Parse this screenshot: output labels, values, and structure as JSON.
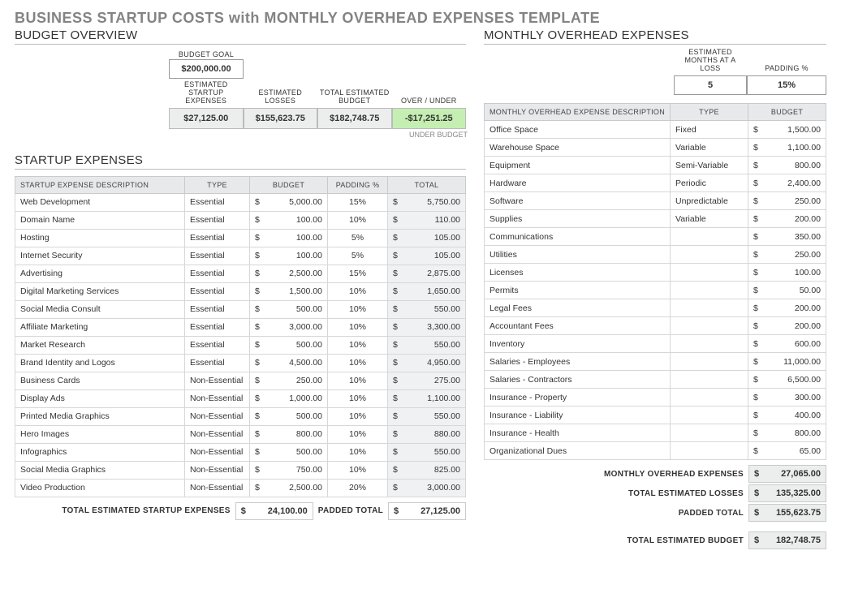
{
  "title": "BUSINESS STARTUP COSTS with MONTHLY OVERHEAD EXPENSES TEMPLATE",
  "budgetOverview": {
    "heading": "BUDGET OVERVIEW",
    "goal": {
      "label": "BUDGET GOAL",
      "value": "$200,000.00"
    },
    "cols": [
      {
        "label": "ESTIMATED STARTUP EXPENSES",
        "value": "$27,125.00"
      },
      {
        "label": "ESTIMATED LOSSES",
        "value": "$155,623.75"
      },
      {
        "label": "TOTAL ESTIMATED BUDGET",
        "value": "$182,748.75"
      },
      {
        "label": "OVER / UNDER",
        "value": "-$17,251.25",
        "green": true
      }
    ],
    "under": "UNDER BUDGET"
  },
  "startup": {
    "heading": "STARTUP EXPENSES",
    "headers": [
      "STARTUP EXPENSE DESCRIPTION",
      "TYPE",
      "BUDGET",
      "PADDING %",
      "TOTAL"
    ],
    "rows": [
      [
        "Web Development",
        "Essential",
        "5,000.00",
        "15%",
        "5,750.00"
      ],
      [
        "Domain Name",
        "Essential",
        "100.00",
        "10%",
        "110.00"
      ],
      [
        "Hosting",
        "Essential",
        "100.00",
        "5%",
        "105.00"
      ],
      [
        "Internet Security",
        "Essential",
        "100.00",
        "5%",
        "105.00"
      ],
      [
        "Advertising",
        "Essential",
        "2,500.00",
        "15%",
        "2,875.00"
      ],
      [
        "Digital Marketing Services",
        "Essential",
        "1,500.00",
        "10%",
        "1,650.00"
      ],
      [
        "Social Media Consult",
        "Essential",
        "500.00",
        "10%",
        "550.00"
      ],
      [
        "Affiliate Marketing",
        "Essential",
        "3,000.00",
        "10%",
        "3,300.00"
      ],
      [
        "Market Research",
        "Essential",
        "500.00",
        "10%",
        "550.00"
      ],
      [
        "Brand Identity and Logos",
        "Essential",
        "4,500.00",
        "10%",
        "4,950.00"
      ],
      [
        "Business Cards",
        "Non-Essential",
        "250.00",
        "10%",
        "275.00"
      ],
      [
        "Display Ads",
        "Non-Essential",
        "1,000.00",
        "10%",
        "1,100.00"
      ],
      [
        "Printed Media Graphics",
        "Non-Essential",
        "500.00",
        "10%",
        "550.00"
      ],
      [
        "Hero Images",
        "Non-Essential",
        "800.00",
        "10%",
        "880.00"
      ],
      [
        "Infographics",
        "Non-Essential",
        "500.00",
        "10%",
        "550.00"
      ],
      [
        "Social Media Graphics",
        "Non-Essential",
        "750.00",
        "10%",
        "825.00"
      ],
      [
        "Video Production",
        "Non-Essential",
        "2,500.00",
        "20%",
        "3,000.00"
      ]
    ],
    "totals": {
      "lbl1": "TOTAL ESTIMATED STARTUP EXPENSES",
      "val1": "24,100.00",
      "lbl2": "PADDED TOTAL",
      "val2": "27,125.00"
    }
  },
  "monthly": {
    "heading": "MONTHLY OVERHEAD EXPENSES",
    "top": {
      "monthsLbl": "ESTIMATED MONTHS AT A LOSS",
      "monthsVal": "5",
      "padLbl": "PADDING %",
      "padVal": "15%"
    },
    "headers": [
      "MONTHLY OVERHEAD EXPENSE DESCRIPTION",
      "TYPE",
      "BUDGET"
    ],
    "rows": [
      [
        "Office Space",
        "Fixed",
        "1,500.00"
      ],
      [
        "Warehouse Space",
        "Variable",
        "1,100.00"
      ],
      [
        "Equipment",
        "Semi-Variable",
        "800.00"
      ],
      [
        "Hardware",
        "Periodic",
        "2,400.00"
      ],
      [
        "Software",
        "Unpredictable",
        "250.00"
      ],
      [
        "Supplies",
        "Variable",
        "200.00"
      ],
      [
        "Communications",
        "",
        "350.00"
      ],
      [
        "Utilities",
        "",
        "250.00"
      ],
      [
        "Licenses",
        "",
        "100.00"
      ],
      [
        "Permits",
        "",
        "50.00"
      ],
      [
        "Legal Fees",
        "",
        "200.00"
      ],
      [
        "Accountant Fees",
        "",
        "200.00"
      ],
      [
        "Inventory",
        "",
        "600.00"
      ],
      [
        "Salaries - Employees",
        "",
        "11,000.00"
      ],
      [
        "Salaries - Contractors",
        "",
        "6,500.00"
      ],
      [
        "Insurance - Property",
        "",
        "300.00"
      ],
      [
        "Insurance - Liability",
        "",
        "400.00"
      ],
      [
        "Insurance - Health",
        "",
        "800.00"
      ],
      [
        "Organizational Dues",
        "",
        "65.00"
      ]
    ],
    "totals": [
      {
        "lbl": "MONTHLY OVERHEAD EXPENSES",
        "val": "27,065.00"
      },
      {
        "lbl": "TOTAL ESTIMATED LOSSES",
        "val": "135,325.00"
      },
      {
        "lbl": "PADDED TOTAL",
        "val": "155,623.75"
      },
      {
        "lbl": "TOTAL ESTIMATED BUDGET",
        "val": "182,748.75",
        "strong": true
      }
    ]
  }
}
